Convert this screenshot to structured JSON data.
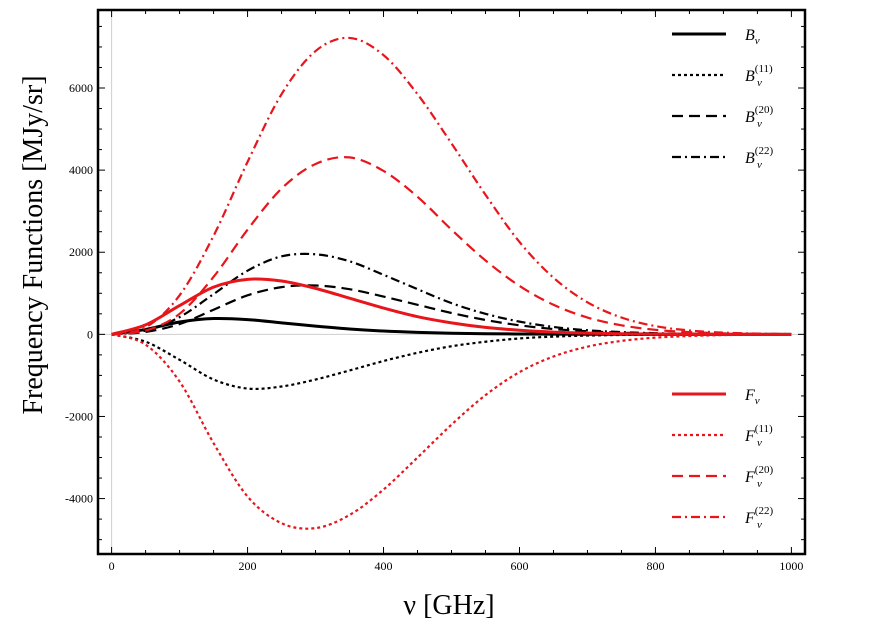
{
  "chart_data": {
    "type": "line",
    "xlabel": "ν [GHz]",
    "ylabel": "Frequency Functions [MJy/sr]",
    "xlim": [
      -20,
      1020
    ],
    "ylim": [
      -5350,
      7900
    ],
    "x_ticks": [
      0,
      200,
      400,
      600,
      800,
      1000
    ],
    "y_ticks": [
      -4000,
      -2000,
      0,
      2000,
      4000,
      6000
    ],
    "grid": false,
    "x": [
      0,
      50,
      100,
      150,
      200,
      250,
      300,
      350,
      400,
      450,
      500,
      550,
      600,
      650,
      700,
      750,
      800,
      850,
      900,
      950,
      1000
    ],
    "series": [
      {
        "key": "B",
        "legend": {
          "base": "B",
          "sub": "ν",
          "sup": ""
        },
        "color": "#000000",
        "dash": "solid",
        "values": [
          0,
          120,
          300,
          385,
          360,
          280,
          200,
          130,
          80,
          48,
          28,
          15,
          8,
          4,
          2,
          1,
          0,
          0,
          0,
          0,
          0
        ]
      },
      {
        "key": "B11",
        "legend": {
          "base": "B",
          "sub": "ν",
          "sup": "(11)"
        },
        "color": "#000000",
        "dash": "dotted",
        "values": [
          0,
          -180,
          -620,
          -1100,
          -1320,
          -1270,
          -1100,
          -880,
          -650,
          -450,
          -290,
          -180,
          -100,
          -55,
          -30,
          -15,
          -7,
          -3,
          -1,
          0,
          0
        ]
      },
      {
        "key": "B20",
        "legend": {
          "base": "B",
          "sub": "ν",
          "sup": "(20)"
        },
        "color": "#000000",
        "dash": "dashed",
        "values": [
          0,
          60,
          250,
          600,
          950,
          1150,
          1190,
          1100,
          920,
          720,
          520,
          350,
          220,
          130,
          75,
          40,
          20,
          10,
          5,
          2,
          1
        ]
      },
      {
        "key": "B22",
        "legend": {
          "base": "B",
          "sub": "ν",
          "sup": "(22)"
        },
        "color": "#000000",
        "dash": "dashdot",
        "values": [
          0,
          90,
          420,
          980,
          1550,
          1900,
          1950,
          1780,
          1450,
          1100,
          760,
          500,
          310,
          180,
          100,
          55,
          28,
          14,
          6,
          3,
          1
        ]
      },
      {
        "key": "F",
        "legend": {
          "base": "F",
          "sub": "ν",
          "sup": ""
        },
        "color": "#e8151b",
        "dash": "solid",
        "values": [
          0,
          230,
          700,
          1150,
          1340,
          1300,
          1120,
          880,
          640,
          430,
          280,
          170,
          100,
          55,
          30,
          15,
          8,
          4,
          2,
          1,
          0
        ]
      },
      {
        "key": "F11",
        "legend": {
          "base": "F",
          "sub": "ν",
          "sup": "(11)"
        },
        "color": "#e8151b",
        "dash": "dotted",
        "values": [
          0,
          -250,
          -1150,
          -2650,
          -3950,
          -4600,
          -4720,
          -4400,
          -3780,
          -3000,
          -2200,
          -1480,
          -920,
          -540,
          -300,
          -160,
          -80,
          -40,
          -18,
          -8,
          -3
        ]
      },
      {
        "key": "F20",
        "legend": {
          "base": "F",
          "sub": "ν",
          "sup": "(20)"
        },
        "color": "#e8151b",
        "dash": "dashed",
        "values": [
          0,
          90,
          500,
          1400,
          2550,
          3550,
          4150,
          4310,
          3980,
          3350,
          2550,
          1800,
          1180,
          720,
          410,
          220,
          110,
          55,
          25,
          12,
          5
        ]
      },
      {
        "key": "F22",
        "legend": {
          "base": "F",
          "sub": "ν",
          "sup": "(22)"
        },
        "color": "#e8151b",
        "dash": "dashdot",
        "values": [
          0,
          170,
          950,
          2400,
          4200,
          5850,
          6900,
          7220,
          6800,
          5850,
          4650,
          3400,
          2250,
          1380,
          780,
          410,
          200,
          95,
          42,
          18,
          7
        ]
      }
    ],
    "legend_groups": [
      {
        "placement": "top-right",
        "keys": [
          "B",
          "B11",
          "B20",
          "B22"
        ]
      },
      {
        "placement": "bottom-right",
        "keys": [
          "F",
          "F11",
          "F20",
          "F22"
        ]
      }
    ]
  }
}
